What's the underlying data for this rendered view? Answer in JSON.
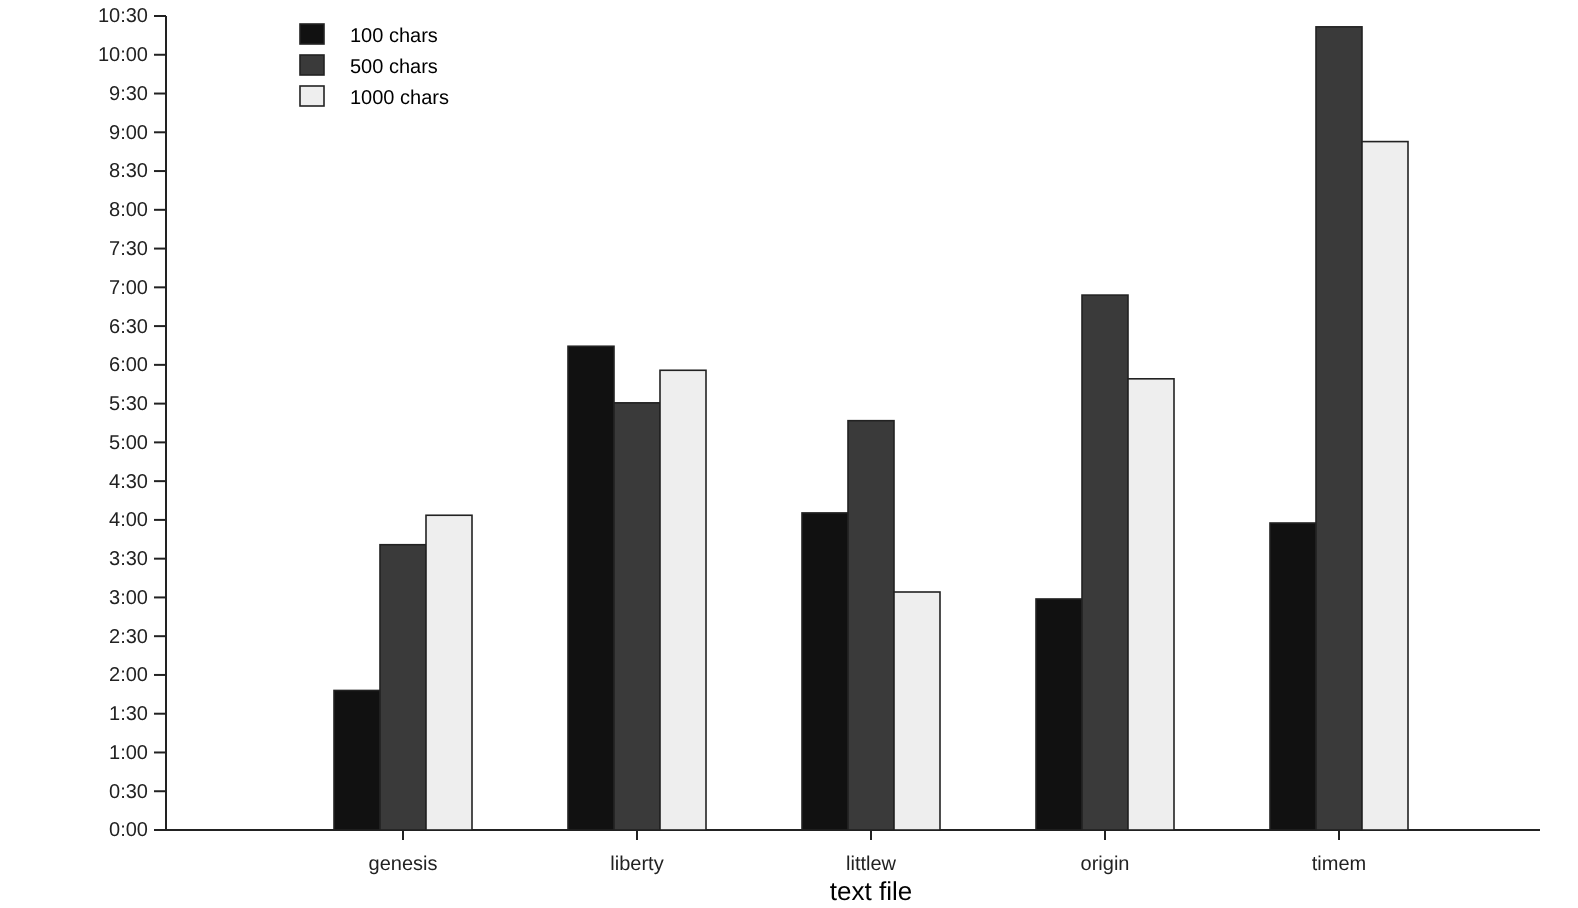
{
  "chart_data": {
    "type": "bar",
    "xlabel": "text file",
    "categories": [
      "genesis",
      "liberty",
      "littlew",
      "origin",
      "timem"
    ],
    "series": [
      {
        "name": "100 chars",
        "color": "#111111",
        "values": [
          1.8,
          6.24,
          4.09,
          2.98,
          3.96
        ]
      },
      {
        "name": "500 chars",
        "color": "#3a3a3a",
        "values": [
          3.68,
          5.51,
          5.28,
          6.9,
          10.36
        ]
      },
      {
        "name": "1000 chars",
        "color": "#eeeeee",
        "values": [
          4.06,
          5.93,
          3.07,
          5.82,
          8.88
        ]
      }
    ],
    "ylim": [
      0,
      10.5
    ],
    "yticks": [
      {
        "value": 0,
        "label": "0:00"
      },
      {
        "value": 0.5,
        "label": "0:30"
      },
      {
        "value": 1,
        "label": "1:00"
      },
      {
        "value": 1.5,
        "label": "1:30"
      },
      {
        "value": 2,
        "label": "2:00"
      },
      {
        "value": 2.5,
        "label": "2:30"
      },
      {
        "value": 3,
        "label": "3:00"
      },
      {
        "value": 3.5,
        "label": "3:30"
      },
      {
        "value": 4,
        "label": "4:00"
      },
      {
        "value": 4.5,
        "label": "4:30"
      },
      {
        "value": 5,
        "label": "5:00"
      },
      {
        "value": 5.5,
        "label": "5:30"
      },
      {
        "value": 6,
        "label": "6:00"
      },
      {
        "value": 6.5,
        "label": "6:30"
      },
      {
        "value": 7,
        "label": "7:00"
      },
      {
        "value": 7.5,
        "label": "7:30"
      },
      {
        "value": 8,
        "label": "8:00"
      },
      {
        "value": 8.5,
        "label": "8:30"
      },
      {
        "value": 9,
        "label": "9:00"
      },
      {
        "value": 9.5,
        "label": "9:30"
      },
      {
        "value": 10,
        "label": "10:00"
      },
      {
        "value": 10.5,
        "label": "10:30"
      }
    ],
    "grid": false,
    "legend": "top left"
  }
}
